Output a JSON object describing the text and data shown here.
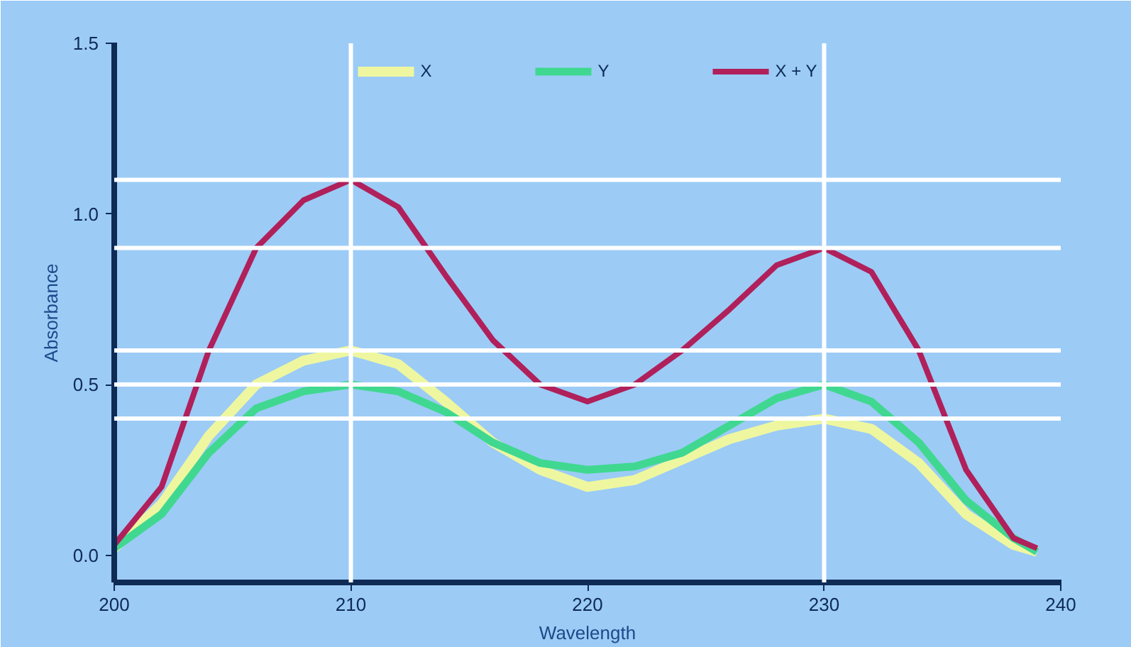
{
  "chart_data": {
    "type": "line",
    "xlabel": "Wavelength",
    "ylabel": "Absorbance",
    "xlim": [
      200,
      240
    ],
    "ylim": [
      -0.08,
      1.5
    ],
    "xticks": [
      200,
      210,
      220,
      230,
      240
    ],
    "yticks": [
      {
        "value": 0,
        "label": "0.0"
      },
      {
        "value": 0.5,
        "label": "0.5"
      },
      {
        "value": 1,
        "label": "1.0"
      },
      {
        "value": 1.5,
        "label": "1.5"
      }
    ],
    "grid": false,
    "legend": "top",
    "line_style": "solid",
    "marker": "none",
    "ref_lines": [
      {
        "axis": "y",
        "value": 1.1,
        "color": "#ffffff"
      },
      {
        "axis": "y",
        "value": 0.9,
        "color": "#ffffff"
      },
      {
        "axis": "y",
        "value": 0.6,
        "color": "#ffffff"
      },
      {
        "axis": "y",
        "value": 0.5,
        "color": "#ffffff"
      },
      {
        "axis": "y",
        "value": 0.4,
        "color": "#ffffff"
      },
      {
        "axis": "x",
        "value": 210,
        "color": "#ffffff"
      },
      {
        "axis": "x",
        "value": 230,
        "color": "#ffffff"
      }
    ],
    "x": [
      200,
      202,
      204,
      206,
      208,
      210,
      212,
      214,
      216,
      218,
      220,
      222,
      224,
      226,
      228,
      230,
      232,
      234,
      236,
      238,
      239
    ],
    "series": [
      {
        "name": "X",
        "color": "#eef7a0",
        "values": [
          0.02,
          0.15,
          0.35,
          0.5,
          0.57,
          0.6,
          0.56,
          0.45,
          0.33,
          0.25,
          0.2,
          0.22,
          0.28,
          0.34,
          0.38,
          0.4,
          0.37,
          0.27,
          0.12,
          0.03,
          0.01
        ]
      },
      {
        "name": "Y",
        "color": "#40d890",
        "values": [
          0.02,
          0.12,
          0.3,
          0.43,
          0.48,
          0.5,
          0.48,
          0.42,
          0.33,
          0.27,
          0.25,
          0.26,
          0.3,
          0.38,
          0.46,
          0.5,
          0.45,
          0.33,
          0.16,
          0.05,
          0.01
        ]
      },
      {
        "name": "X + Y",
        "color": "#b0205a",
        "values": [
          0.03,
          0.2,
          0.6,
          0.9,
          1.04,
          1.1,
          1.02,
          0.82,
          0.63,
          0.5,
          0.45,
          0.5,
          0.6,
          0.72,
          0.85,
          0.9,
          0.83,
          0.6,
          0.25,
          0.05,
          0.02
        ]
      }
    ]
  }
}
